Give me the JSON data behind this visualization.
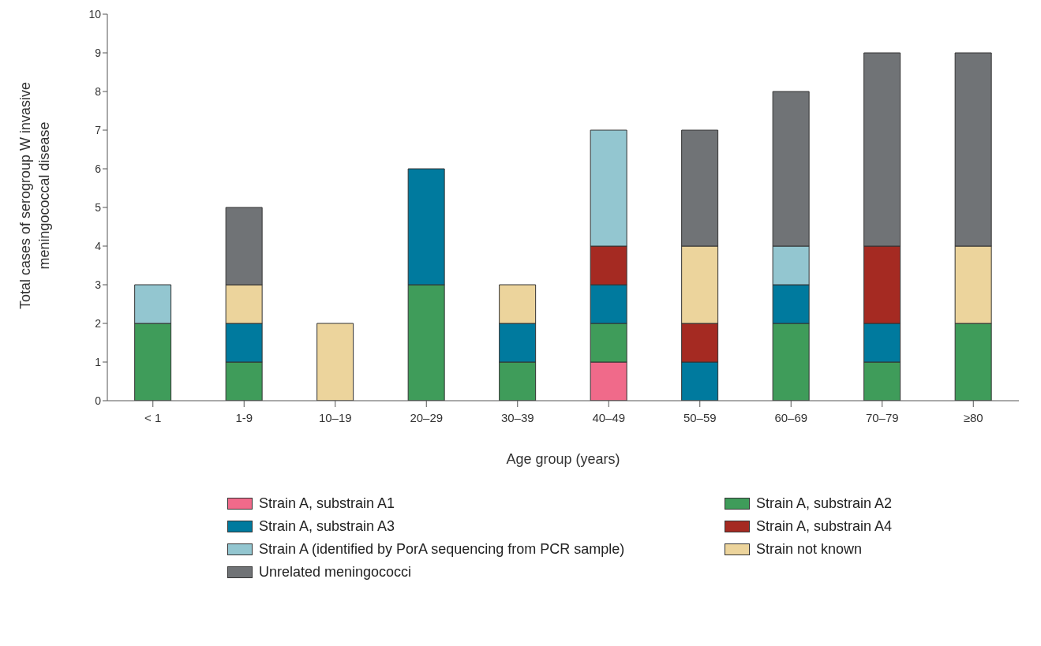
{
  "chart_data": {
    "type": "bar",
    "stacked": true,
    "xlabel": "Age group (years)",
    "ylabel": "Total cases of serogroup W invasive meningococcal disease",
    "categories": [
      "< 1",
      "1-9",
      "10–19",
      "20–29",
      "30–39",
      "40–49",
      "50–59",
      "60–69",
      "70–79",
      "≥80"
    ],
    "series": [
      {
        "name": "Strain A, substrain A1",
        "color": "#f06a8a",
        "values": [
          null,
          null,
          null,
          null,
          null,
          1,
          null,
          null,
          null,
          null
        ]
      },
      {
        "name": "Strain A, substrain A2",
        "color": "#3f9c5a",
        "values": [
          2,
          1,
          null,
          3,
          1,
          1,
          null,
          2,
          1,
          2
        ]
      },
      {
        "name": "Strain A, substrain A3",
        "color": "#007a9e",
        "values": [
          null,
          1,
          null,
          3,
          1,
          1,
          1,
          1,
          1,
          null
        ]
      },
      {
        "name": "Strain A, substrain A4",
        "color": "#a52a22",
        "values": [
          null,
          null,
          null,
          null,
          null,
          1,
          1,
          null,
          2,
          null
        ]
      },
      {
        "name": "Strain A (identified by PorA sequencing from PCR sample)",
        "color": "#93c6d0",
        "values": [
          1,
          null,
          null,
          null,
          null,
          3,
          null,
          1,
          null,
          null
        ]
      },
      {
        "name": "Strain not known",
        "color": "#ecd49c",
        "values": [
          null,
          1,
          2,
          null,
          1,
          null,
          2,
          null,
          null,
          2
        ]
      },
      {
        "name": "Unrelated meningococci",
        "color": "#707376",
        "values": [
          null,
          2,
          null,
          null,
          null,
          null,
          3,
          4,
          5,
          5
        ]
      }
    ],
    "ylim": [
      0,
      10
    ],
    "yticks": [
      0,
      1,
      2,
      3,
      4,
      5,
      6,
      7,
      8,
      9,
      10
    ],
    "grid": false,
    "legend": "bottom"
  }
}
